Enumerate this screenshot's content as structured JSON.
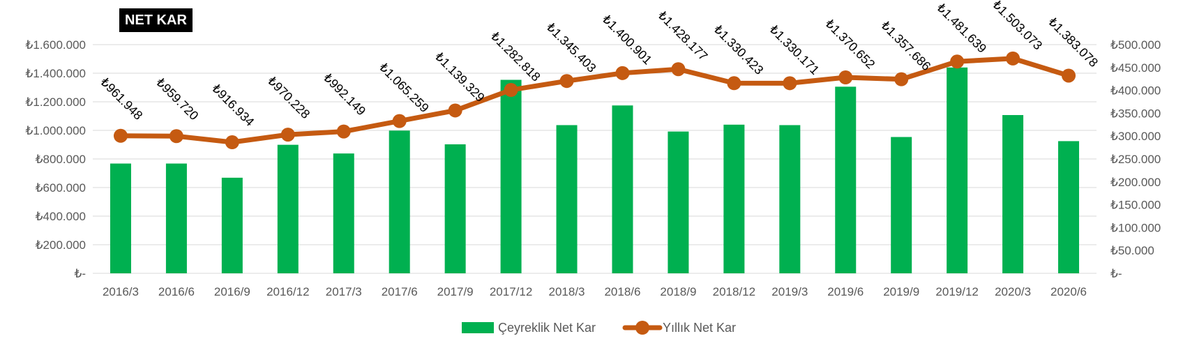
{
  "chart_data": {
    "type": "bar+line",
    "title": "NET KAR",
    "categories": [
      "2016/3",
      "2016/6",
      "2016/9",
      "2016/12",
      "2017/3",
      "2017/6",
      "2017/9",
      "2017/12",
      "2018/3",
      "2018/6",
      "2018/9",
      "2018/12",
      "2019/3",
      "2019/6",
      "2019/9",
      "2019/12",
      "2020/3",
      "2020/6"
    ],
    "series": [
      {
        "name": "Çeyreklik Net Kar",
        "type": "bar",
        "axis": "secondary",
        "color": "#00B050",
        "values": [
          240000,
          240000,
          209000,
          281000,
          262000,
          312000,
          282000,
          423000,
          324000,
          367000,
          310000,
          325000,
          324000,
          408000,
          298000,
          450000,
          346000,
          289000
        ]
      },
      {
        "name": "Yıllık Net Kar",
        "type": "line",
        "axis": "primary",
        "color": "#C55A11",
        "values": [
          961948,
          959720,
          916934,
          970228,
          992149,
          1065259,
          1139329,
          1282818,
          1345403,
          1400901,
          1428177,
          1330423,
          1330171,
          1370652,
          1357686,
          1481639,
          1503073,
          1383078
        ],
        "labels": [
          "₺961.948",
          "₺959.720",
          "₺916.934",
          "₺970.228",
          "₺992.149",
          "₺1.065.259",
          "₺1.139.329",
          "₺1.282.818",
          "₺1.345.403",
          "₺1.400.901",
          "₺1.428.177",
          "₺1.330.423",
          "₺1.330.171",
          "₺1.370.652",
          "₺1.357.686",
          "₺1.481.639",
          "₺1.503.073",
          "₺1.383.078"
        ]
      }
    ],
    "y_left": {
      "min": 0,
      "max": 1600000,
      "ticks": [
        0,
        200000,
        400000,
        600000,
        800000,
        1000000,
        1200000,
        1400000,
        1600000
      ],
      "tick_labels": [
        "₺-",
        "₺200.000",
        "₺400.000",
        "₺600.000",
        "₺800.000",
        "₺1.000.000",
        "₺1.200.000",
        "₺1.400.000",
        "₺1.600.000"
      ]
    },
    "y_right": {
      "min": 0,
      "max": 500000,
      "ticks": [
        0,
        50000,
        100000,
        150000,
        200000,
        250000,
        300000,
        350000,
        400000,
        450000,
        500000
      ],
      "tick_labels": [
        "₺-",
        "₺50.000",
        "₺100.000",
        "₺150.000",
        "₺200.000",
        "₺250.000",
        "₺300.000",
        "₺350.000",
        "₺400.000",
        "₺450.000",
        "₺500.000"
      ]
    },
    "grid": true,
    "legend_position": "bottom",
    "legend": [
      {
        "label": "Çeyreklik Net Kar",
        "marker": "bar",
        "color": "#00B050"
      },
      {
        "label": "Yıllık Net Kar",
        "marker": "line",
        "color": "#C55A11"
      }
    ]
  }
}
